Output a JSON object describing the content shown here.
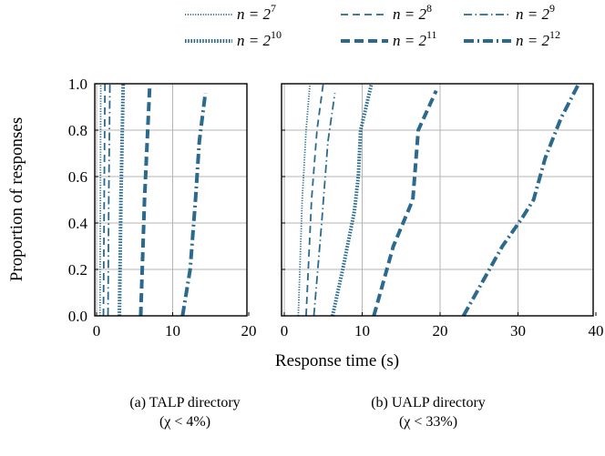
{
  "chart_data": {
    "type": "line",
    "shared_ylabel": "Proportion of responses",
    "shared_xlabel": "Response time (s)",
    "color": "#2b6a8e",
    "series_styles": [
      {
        "id": "n7",
        "dash": "dotted",
        "width": "thin"
      },
      {
        "id": "n8",
        "dash": "dashed",
        "width": "thin"
      },
      {
        "id": "n9",
        "dash": "dashdot",
        "width": "thin"
      },
      {
        "id": "n10",
        "dash": "dotted",
        "width": "thick"
      },
      {
        "id": "n11",
        "dash": "dashed",
        "width": "thick"
      },
      {
        "id": "n12",
        "dash": "dashdot",
        "width": "thick"
      }
    ],
    "legend": {
      "placement": "top",
      "entries": [
        {
          "id": "n7",
          "base": "n = 2",
          "exp": "7"
        },
        {
          "id": "n8",
          "base": "n = 2",
          "exp": "8"
        },
        {
          "id": "n9",
          "base": "n = 2",
          "exp": "9"
        },
        {
          "id": "n10",
          "base": "n = 2",
          "exp": "10"
        },
        {
          "id": "n11",
          "base": "n = 2",
          "exp": "11"
        },
        {
          "id": "n12",
          "base": "n = 2",
          "exp": "12"
        }
      ]
    },
    "panels": [
      {
        "id": "talp",
        "caption_line1": "(a) TALP directory",
        "caption_line2": "(χ < 4%)",
        "xlim": [
          0,
          20
        ],
        "ylim": [
          0,
          1
        ],
        "xticks": [
          0,
          10,
          20
        ],
        "yticks": [
          0.0,
          0.2,
          0.4,
          0.6,
          0.8,
          1.0
        ],
        "ytick_labels": [
          "0.0",
          "0.2",
          "0.4",
          "0.6",
          "0.8",
          "1.0"
        ],
        "grid": true,
        "series": [
          {
            "id": "n7",
            "points": [
              [
                0.45,
                0.0
              ],
              [
                0.5,
                0.5
              ],
              [
                0.55,
                1.0
              ]
            ]
          },
          {
            "id": "n8",
            "points": [
              [
                0.9,
                0.0
              ],
              [
                1.0,
                0.5
              ],
              [
                1.1,
                1.0
              ]
            ]
          },
          {
            "id": "n9",
            "points": [
              [
                1.5,
                0.0
              ],
              [
                1.6,
                0.5
              ],
              [
                1.75,
                1.0
              ]
            ]
          },
          {
            "id": "n10",
            "points": [
              [
                3.0,
                0.0
              ],
              [
                3.2,
                0.5
              ],
              [
                3.5,
                1.0
              ]
            ]
          },
          {
            "id": "n11",
            "points": [
              [
                5.8,
                0.0
              ],
              [
                6.3,
                0.5
              ],
              [
                7.0,
                1.0
              ]
            ]
          },
          {
            "id": "n12",
            "points": [
              [
                11.3,
                0.0
              ],
              [
                12.3,
                0.2
              ],
              [
                13.0,
                0.5
              ],
              [
                13.5,
                0.75
              ],
              [
                14.3,
                0.96
              ]
            ]
          }
        ]
      },
      {
        "id": "ualp",
        "caption_line1": "(b) UALP directory",
        "caption_line2": "(χ < 33%)",
        "xlim": [
          0,
          40
        ],
        "ylim": [
          0,
          1
        ],
        "xticks": [
          0,
          10,
          20,
          30,
          40
        ],
        "yticks": [
          0.0,
          0.2,
          0.4,
          0.6,
          0.8,
          1.0
        ],
        "grid": true,
        "series": [
          {
            "id": "n7",
            "points": [
              [
                1.8,
                0.0
              ],
              [
                2.3,
                0.5
              ],
              [
                2.8,
                0.8
              ],
              [
                3.3,
                1.0
              ]
            ]
          },
          {
            "id": "n8",
            "points": [
              [
                2.8,
                0.0
              ],
              [
                3.5,
                0.5
              ],
              [
                4.2,
                0.8
              ],
              [
                5.0,
                1.0
              ]
            ]
          },
          {
            "id": "n9",
            "points": [
              [
                3.8,
                0.0
              ],
              [
                4.8,
                0.4
              ],
              [
                5.6,
                0.75
              ],
              [
                6.5,
                0.96
              ]
            ]
          },
          {
            "id": "n10",
            "points": [
              [
                6.2,
                0.0
              ],
              [
                7.5,
                0.2
              ],
              [
                9.0,
                0.45
              ],
              [
                9.5,
                0.6
              ],
              [
                9.8,
                0.8
              ],
              [
                10.5,
                0.9
              ],
              [
                11.2,
                1.0
              ]
            ]
          },
          {
            "id": "n11",
            "points": [
              [
                11.5,
                0.0
              ],
              [
                14.0,
                0.3
              ],
              [
                16.5,
                0.5
              ],
              [
                17.2,
                0.8
              ],
              [
                19.5,
                0.97
              ]
            ]
          },
          {
            "id": "n12",
            "points": [
              [
                23.0,
                0.0
              ],
              [
                25.5,
                0.15
              ],
              [
                28.0,
                0.3
              ],
              [
                30.5,
                0.42
              ],
              [
                32.0,
                0.5
              ],
              [
                33.5,
                0.68
              ],
              [
                35.5,
                0.85
              ],
              [
                37.8,
                1.0
              ]
            ]
          }
        ]
      }
    ]
  }
}
